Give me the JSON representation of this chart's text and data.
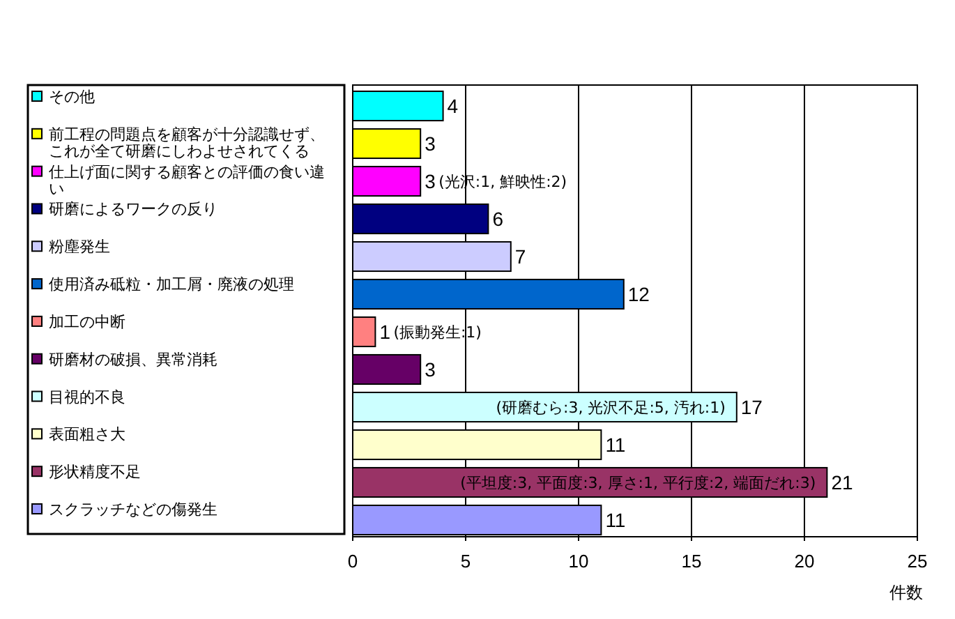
{
  "chart_data": {
    "type": "bar",
    "orientation": "horizontal",
    "categories": [
      "その他",
      "前工程の問題点を顧客が十分認識せず、これが全て研磨にしわよせされてくる",
      "仕上げ面に関する顧客との評価の食い違い",
      "研磨によるワークの反り",
      "粉塵発生",
      "使用済み砥粒・加工屑・廃液の処理",
      "加工の中断",
      "研磨材の破損、異常消耗",
      "目視的不良",
      "表面粗さ大",
      "形状精度不足",
      "スクラッチなどの傷発生"
    ],
    "values": [
      4,
      3,
      3,
      6,
      7,
      12,
      1,
      3,
      17,
      11,
      21,
      11
    ],
    "colors": [
      "#00ffff",
      "#ffff00",
      "#ff00ff",
      "#000080",
      "#ccccff",
      "#0066cc",
      "#ff8080",
      "#660066",
      "#ccffff",
      "#ffffcc",
      "#993366",
      "#9999ff"
    ],
    "xlabel": "件数",
    "xlim": [
      0,
      25
    ],
    "xticks": [
      0,
      5,
      10,
      15,
      20,
      25
    ],
    "grid": "x",
    "data_labels": true,
    "annotations": [
      {
        "text": "(光沢:1, 鮮映性:2)",
        "x": 3,
        "y": "仕上げ面に関する顧客との評価の食い違い"
      },
      {
        "text": "(振動発生:1)",
        "x": 1,
        "y": "加工の中断"
      },
      {
        "text": "(研磨むら:3, 光沢不足:5, 汚れ:1)",
        "x": 17,
        "y": "目視的不良"
      },
      {
        "text": "(平坦度:3, 平面度:3, 厚さ:1, 平行度:2, 端面だれ:3)",
        "x": 21,
        "y": "形状精度不足"
      }
    ]
  }
}
